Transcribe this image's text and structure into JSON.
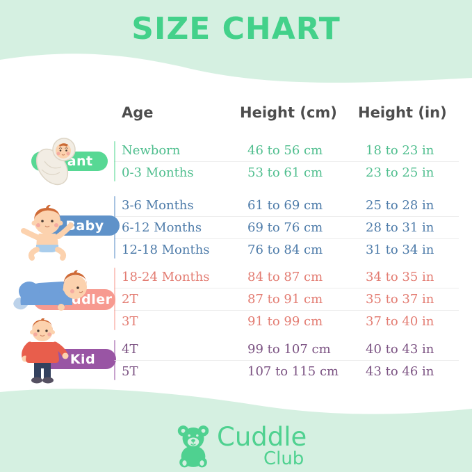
{
  "title": "SIZE CHART",
  "columns": [
    "Age",
    "Height (cm)",
    "Height (in)"
  ],
  "groups": [
    {
      "label": "Infant",
      "pill_color": "#57d894",
      "text_color": "#4fbe8e",
      "rows": [
        {
          "age": "Newborn",
          "cm": "46 to 56 cm",
          "in": "18 to 23 in"
        },
        {
          "age": "0-3 Months",
          "cm": "53 to 61 cm",
          "in": "23 to 25 in"
        }
      ]
    },
    {
      "label": "Baby",
      "pill_color": "#5f92c9",
      "text_color": "#4d7ba9",
      "rows": [
        {
          "age": "3-6 Months",
          "cm": "61 to 69 cm",
          "in": "25 to 28 in"
        },
        {
          "age": "6-12 Months",
          "cm": "69 to 76 cm",
          "in": "28 to 31 in"
        },
        {
          "age": "12-18 Months",
          "cm": "76 to 84 cm",
          "in": "31 to 34 in"
        }
      ]
    },
    {
      "label": "Toddler",
      "pill_color": "#f79a90",
      "text_color": "#e37c72",
      "rows": [
        {
          "age": "18-24 Months",
          "cm": "84 to 87 cm",
          "in": "34 to 35 in"
        },
        {
          "age": "2T",
          "cm": "87 to 91 cm",
          "in": "35 to 37 in"
        },
        {
          "age": "3T",
          "cm": "91 to 99 cm",
          "in": "37 to 40 in"
        }
      ]
    },
    {
      "label": "Kid",
      "pill_color": "#9955a4",
      "text_color": "#7b5282",
      "rows": [
        {
          "age": "4T",
          "cm": "99 to 107 cm",
          "in": "40 to 43 in"
        },
        {
          "age": "5T",
          "cm": "107 to 115 cm",
          "in": "43 to 46 in"
        }
      ]
    }
  ],
  "logo": {
    "brand": "Cuddle",
    "sub": "Club"
  },
  "icons": [
    "teddy-bear-icon",
    "infant-illustration",
    "baby-illustration",
    "toddler-illustration",
    "kid-illustration"
  ],
  "colors": {
    "bg": "#d5f0e1",
    "card": "#ffffff",
    "title": "#43d18a",
    "header": "#4d4d4d",
    "logo": "#4fd190",
    "separator": "#ededed"
  }
}
